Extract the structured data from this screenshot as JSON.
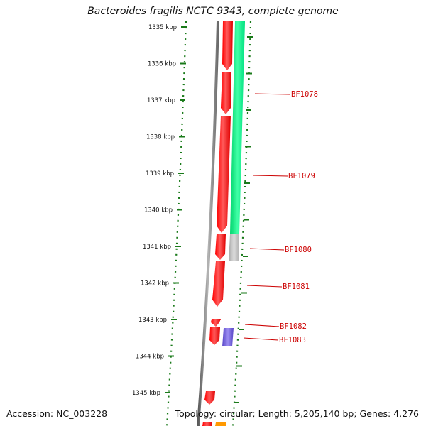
{
  "title": "Bacteroides fragilis NCTC 9343, complete genome",
  "accession": "Accession: NC_003228",
  "topology": "Topology: circular; Length: 5,205,140 bp; Genes: 4,276",
  "ruler": [
    {
      "label": "1335 kbp"
    },
    {
      "label": "1336 kbp"
    },
    {
      "label": "1337 kbp"
    },
    {
      "label": "1338 kbp"
    },
    {
      "label": "1339 kbp"
    },
    {
      "label": "1340 kbp"
    },
    {
      "label": "1341 kbp"
    },
    {
      "label": "1342 kbp"
    },
    {
      "label": "1343 kbp"
    },
    {
      "label": "1344 kbp"
    },
    {
      "label": "1345 kbp"
    }
  ],
  "genes": [
    {
      "label": "BF1078"
    },
    {
      "label": "BF1079"
    },
    {
      "label": "BF1080"
    },
    {
      "label": "BF1081"
    },
    {
      "label": "BF1082"
    },
    {
      "label": "BF1083"
    }
  ],
  "colors": {
    "cds": "#ff0000",
    "cds_highlight": "#ff6a6a",
    "backbone": "#808080",
    "ruler_green": "#1a7a1a",
    "gc_green": "#00e87a",
    "gc_gray": "#c0c0c0",
    "blue_feature": "#6f5fd6",
    "orange_feature": "#ff9900",
    "label_red": "#cc0000"
  }
}
